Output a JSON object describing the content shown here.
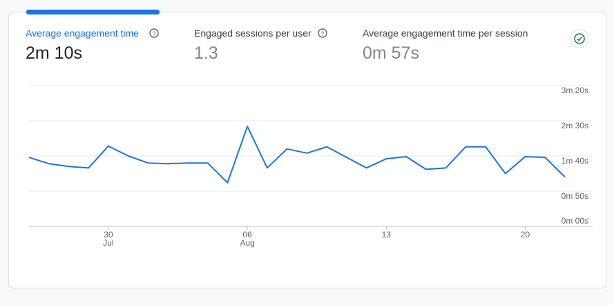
{
  "metrics": [
    {
      "label": "Average engagement time",
      "value": "2m 10s"
    },
    {
      "label": "Engaged sessions per user",
      "value": "1.3"
    },
    {
      "label": "Average engagement time per session",
      "value": "0m 57s"
    }
  ],
  "chart_data": {
    "type": "line",
    "categories": [
      null,
      null,
      null,
      null,
      "30",
      null,
      null,
      null,
      null,
      null,
      null,
      "06",
      null,
      null,
      null,
      null,
      null,
      null,
      "13",
      null,
      null,
      null,
      null,
      null,
      null,
      "20",
      null,
      null
    ],
    "month_labels": [
      null,
      null,
      null,
      null,
      "Jul",
      null,
      null,
      null,
      null,
      null,
      null,
      "Aug",
      null,
      null,
      null,
      null,
      null,
      null,
      null,
      null,
      null,
      null,
      null,
      null,
      null,
      null,
      null,
      null
    ],
    "series": [
      {
        "name": "Average engagement time",
        "color": "#1a73e8",
        "values": [
          98,
          89,
          85,
          83,
          114,
          100,
          90,
          89,
          90,
          90,
          62,
          142,
          83,
          110,
          104,
          113,
          98,
          83,
          96,
          99,
          81,
          83,
          113,
          113,
          75,
          99,
          98,
          70
        ]
      }
    ],
    "ylim": [
      0,
      200
    ],
    "yticks": [
      {
        "value": 0,
        "label": "0m 00s"
      },
      {
        "value": 50,
        "label": "0m 50s"
      },
      {
        "value": 100,
        "label": "1m 40s"
      },
      {
        "value": 150,
        "label": "2m 30s"
      },
      {
        "value": 200,
        "label": "3m 20s"
      }
    ],
    "grid": true
  }
}
